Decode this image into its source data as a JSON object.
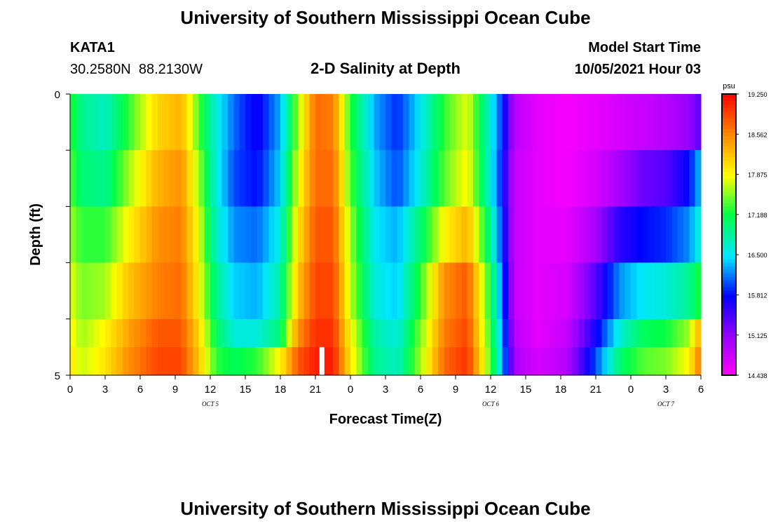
{
  "title": "University of Southern Mississippi Ocean Cube",
  "footer_title": "University of Southern Mississippi Ocean Cube",
  "station": {
    "id": "KATA1",
    "coords": "30.2580N  88.2130W"
  },
  "plot_title": "2-D Salinity at Depth",
  "model_start": {
    "label": "Model Start Time",
    "value": "10/05/2021 Hour 03"
  },
  "chart_data": {
    "type": "heatmap",
    "title": "2-D Salinity at Depth",
    "xlabel": "Forecast Time(Z)",
    "ylabel": "Depth (ft)",
    "ylim": [
      0,
      5
    ],
    "y_ticks": [
      "0",
      "5"
    ],
    "x_ticks": [
      "0",
      "3",
      "6",
      "9",
      "12",
      "15",
      "18",
      "21",
      "0",
      "3",
      "6",
      "9",
      "12",
      "15",
      "18",
      "21",
      "0",
      "3",
      "6"
    ],
    "date_labels": [
      {
        "label": "OCT 5",
        "hour_index": 12
      },
      {
        "label": "OCT 6",
        "hour_index": 36
      },
      {
        "label": "OCT 7",
        "hour_index": 51
      }
    ],
    "hours_range": [
      0,
      54
    ],
    "colorbar": {
      "unit": "psu",
      "min": 14.438,
      "max": 19.25,
      "labels": [
        "19.250",
        "18.562",
        "17.875",
        "17.188",
        "16.500",
        "15.812",
        "15.125",
        "14.438"
      ]
    },
    "depth_layers": [
      "0-1",
      "1-2",
      "2-3",
      "3-4",
      "4-4.5",
      "4.5-5"
    ],
    "time_keyframes_hours": [
      0,
      1,
      3,
      5,
      7.5,
      9.5,
      11,
      12.5,
      14,
      16,
      18,
      19.5,
      21,
      22.5,
      24,
      26,
      28,
      30,
      32,
      34,
      36,
      37,
      38,
      40,
      42.5,
      45,
      47,
      49,
      51,
      53,
      54
    ],
    "salinity_rows": [
      [
        17.3,
        16.9,
        16.7,
        17.3,
        18.1,
        18.3,
        17.4,
        16.6,
        16.1,
        15.7,
        16.3,
        17.6,
        18.7,
        18.6,
        17.3,
        16.3,
        15.9,
        16.5,
        17.3,
        17.8,
        16.6,
        15.9,
        14.9,
        14.6,
        14.5,
        14.6,
        14.7,
        14.8,
        14.9,
        15.1,
        15.4
      ],
      [
        17.4,
        17.0,
        16.9,
        17.6,
        18.3,
        18.5,
        17.6,
        16.6,
        16.0,
        15.8,
        16.4,
        17.8,
        18.7,
        18.7,
        17.4,
        16.4,
        16.0,
        16.6,
        17.4,
        17.9,
        16.6,
        15.8,
        14.8,
        14.6,
        14.5,
        14.7,
        15.0,
        15.3,
        15.4,
        15.8,
        16.4
      ],
      [
        17.6,
        17.3,
        17.3,
        17.9,
        18.5,
        18.6,
        17.8,
        16.7,
        16.2,
        16.1,
        16.6,
        18.0,
        18.8,
        18.8,
        17.6,
        16.5,
        16.3,
        17.0,
        17.9,
        18.3,
        16.9,
        15.9,
        14.8,
        14.6,
        14.6,
        15.0,
        15.6,
        15.8,
        15.9,
        16.2,
        16.7
      ],
      [
        17.8,
        17.5,
        17.6,
        18.2,
        18.6,
        18.7,
        17.9,
        16.9,
        16.4,
        16.3,
        16.8,
        18.2,
        18.9,
        18.9,
        17.7,
        16.6,
        16.4,
        17.3,
        18.5,
        18.8,
        17.2,
        16.1,
        14.8,
        14.6,
        14.7,
        15.4,
        16.2,
        16.5,
        16.6,
        16.9,
        17.3
      ],
      [
        17.9,
        17.6,
        17.9,
        18.4,
        18.8,
        18.8,
        18.1,
        17.1,
        16.6,
        16.6,
        17.0,
        18.5,
        19.0,
        19.0,
        17.9,
        16.8,
        16.6,
        17.5,
        18.6,
        18.9,
        17.3,
        16.2,
        14.9,
        14.6,
        14.8,
        15.7,
        16.6,
        17.1,
        17.2,
        17.6,
        18.4
      ],
      [
        18.0,
        17.7,
        18.0,
        18.5,
        18.9,
        18.9,
        18.2,
        17.3,
        17.1,
        17.3,
        17.9,
        18.8,
        19.1,
        19.1,
        18.0,
        16.9,
        16.7,
        17.6,
        18.7,
        19.0,
        17.4,
        16.3,
        15.0,
        14.7,
        14.9,
        16.0,
        17.0,
        17.4,
        17.5,
        17.9,
        18.7
      ]
    ]
  }
}
